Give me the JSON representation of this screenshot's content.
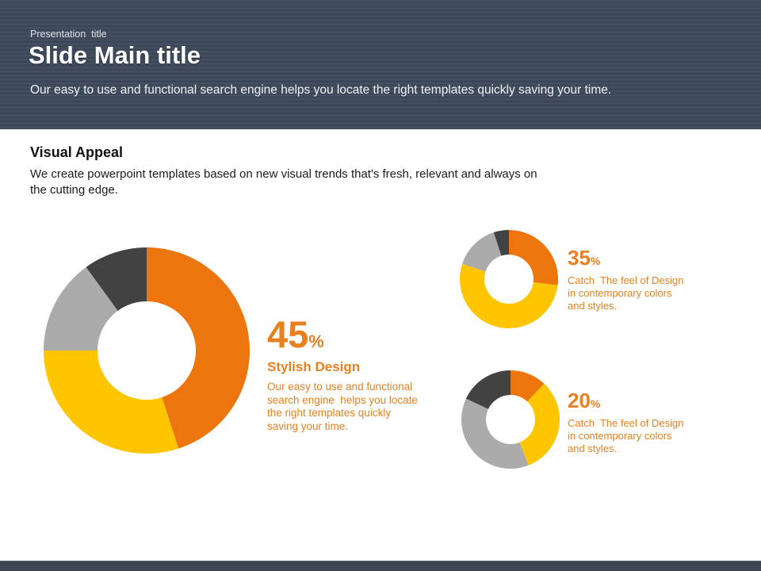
{
  "header": {
    "kicker": "Presentation  title",
    "title": "Slide Main title",
    "subtitle": "Our easy to use and functional search engine helps you locate the right templates quickly saving your time."
  },
  "section": {
    "heading": "Visual Appeal",
    "body": "We create powerpoint templates based on new visual trends that's fresh, relevant and always on\nthe cutting edge."
  },
  "colors": {
    "header_background": "#3E4A5B",
    "footer_background": "#39424E",
    "orange_text": "#E8801F",
    "segment_orange": "#EC750E",
    "segment_yellow": "#FFC600",
    "segment_gray": "#ABABAB",
    "segment_dark": "#424242"
  },
  "chart_data": [
    {
      "type": "pie",
      "variant": "donut",
      "value_label": "45",
      "percent_sign": "%",
      "caption_title": "Stylish Design",
      "caption_body": "Our easy to use and functional\nsearch engine  helps you locate\nthe right templates quickly\nsaving your time.",
      "legend_position": "none",
      "segments": [
        {
          "name": "orange",
          "value": 45,
          "color": "#EC750E"
        },
        {
          "name": "yellow",
          "value": 30,
          "color": "#FFC600"
        },
        {
          "name": "gray",
          "value": 15,
          "color": "#ABABAB"
        },
        {
          "name": "dark-gray",
          "value": 10,
          "color": "#424242"
        }
      ]
    },
    {
      "type": "pie",
      "variant": "donut",
      "value_label": "35",
      "percent_sign": "%",
      "caption_title": "",
      "caption_body": "Catch  The feel of Design\nin contemporary colors\nand styles.",
      "legend_position": "none",
      "segments": [
        {
          "name": "orange",
          "value": 27,
          "color": "#EC750E"
        },
        {
          "name": "yellow",
          "value": 53,
          "color": "#FFC600"
        },
        {
          "name": "gray",
          "value": 15,
          "color": "#ABABAB"
        },
        {
          "name": "dark-gray",
          "value": 5,
          "color": "#424242"
        }
      ]
    },
    {
      "type": "pie",
      "variant": "donut",
      "value_label": "20",
      "percent_sign": "%",
      "caption_title": "",
      "caption_body": "Catch  The feel of Design\nin contemporary colors\nand styles.",
      "legend_position": "none",
      "segments": [
        {
          "name": "orange",
          "value": 12,
          "color": "#EC750E"
        },
        {
          "name": "yellow",
          "value": 32,
          "color": "#FFC600"
        },
        {
          "name": "gray",
          "value": 38,
          "color": "#ABABAB"
        },
        {
          "name": "dark-gray",
          "value": 18,
          "color": "#424242"
        }
      ]
    }
  ]
}
